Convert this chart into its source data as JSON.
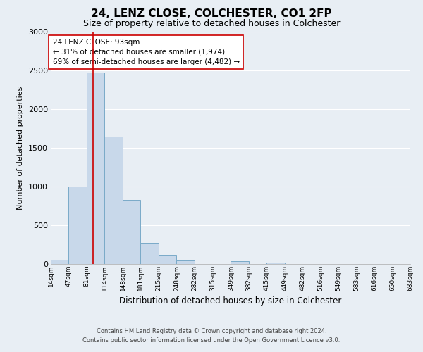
{
  "title": "24, LENZ CLOSE, COLCHESTER, CO1 2FP",
  "subtitle": "Size of property relative to detached houses in Colchester",
  "xlabel": "Distribution of detached houses by size in Colchester",
  "ylabel": "Number of detached properties",
  "bin_labels": [
    "14sqm",
    "47sqm",
    "81sqm",
    "114sqm",
    "148sqm",
    "181sqm",
    "215sqm",
    "248sqm",
    "282sqm",
    "315sqm",
    "349sqm",
    "382sqm",
    "415sqm",
    "449sqm",
    "482sqm",
    "516sqm",
    "549sqm",
    "583sqm",
    "616sqm",
    "650sqm",
    "683sqm"
  ],
  "bin_edges": [
    14,
    47,
    81,
    114,
    148,
    181,
    215,
    248,
    282,
    315,
    349,
    382,
    415,
    449,
    482,
    516,
    549,
    583,
    616,
    650,
    683
  ],
  "bar_heights": [
    55,
    1000,
    2470,
    1650,
    830,
    270,
    120,
    50,
    0,
    0,
    35,
    0,
    20,
    0,
    0,
    0,
    0,
    0,
    0,
    0
  ],
  "bar_color": "#c8d8ea",
  "bar_edge_color": "#7aaac8",
  "vline_x": 93,
  "vline_color": "#cc0000",
  "ylim": [
    0,
    3000
  ],
  "yticks": [
    0,
    500,
    1000,
    1500,
    2000,
    2500,
    3000
  ],
  "annotation_title": "24 LENZ CLOSE: 93sqm",
  "annotation_line1": "← 31% of detached houses are smaller (1,974)",
  "annotation_line2": "69% of semi-detached houses are larger (4,482) →",
  "annotation_box_color": "#ffffff",
  "annotation_box_edge": "#cc0000",
  "footer1": "Contains HM Land Registry data © Crown copyright and database right 2024.",
  "footer2": "Contains public sector information licensed under the Open Government Licence v3.0.",
  "background_color": "#e8eef4",
  "grid_color": "#ffffff",
  "title_fontsize": 11,
  "subtitle_fontsize": 9,
  "ylabel_fontsize": 8,
  "xlabel_fontsize": 8.5,
  "ann_fontsize": 7.5,
  "footer_fontsize": 6
}
